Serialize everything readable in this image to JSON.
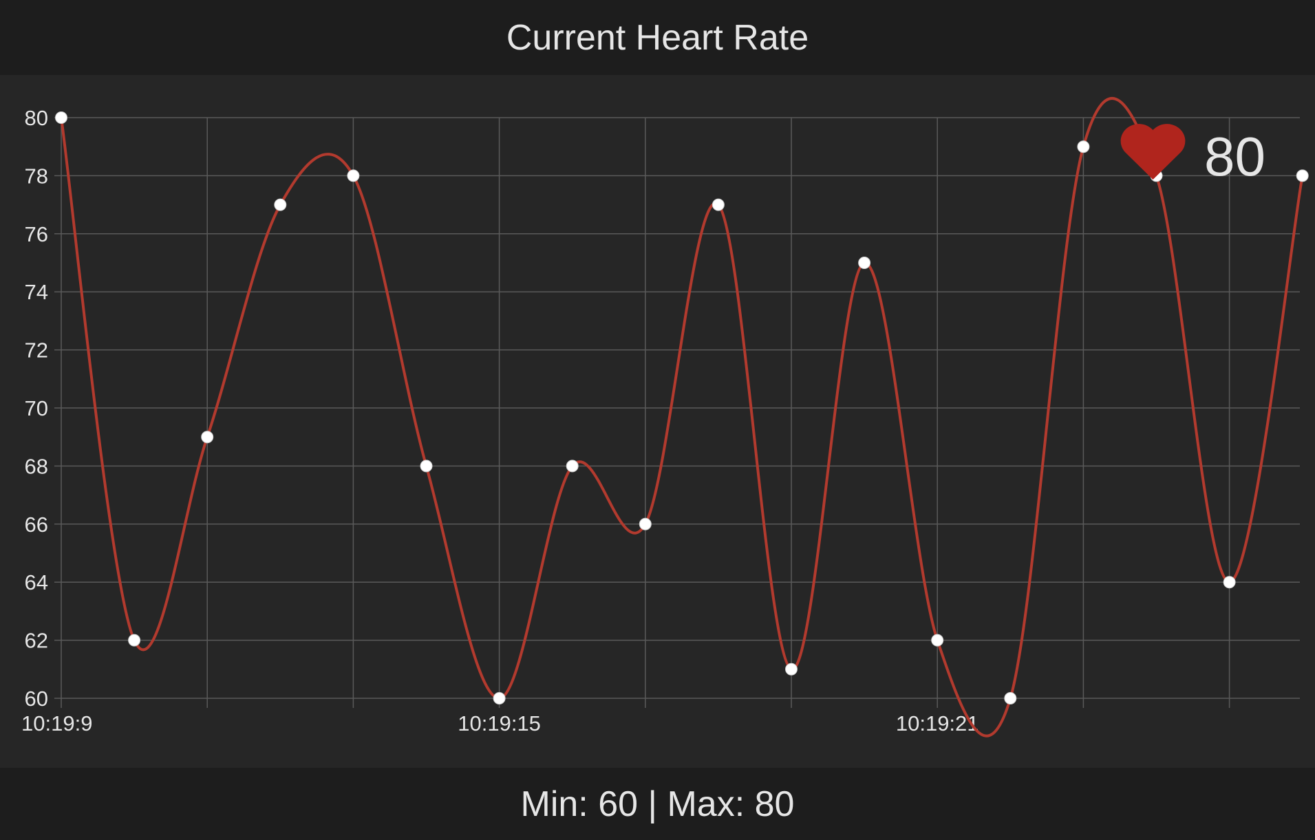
{
  "header": {
    "title": "Current Heart Rate"
  },
  "footer": {
    "min_label": "Min:",
    "min_value": "60",
    "separator": "|",
    "max_label": "Max:",
    "max_value": "80"
  },
  "current": {
    "icon": "heart-icon",
    "value": "80"
  },
  "colors": {
    "line": "#b23a2e",
    "heart": "#b0251d",
    "grid": "#5a5a5a",
    "point_fill": "#ffffff",
    "text": "#e6e6e6"
  },
  "chart_data": {
    "type": "line",
    "title": "Current Heart Rate",
    "xlabel": "",
    "ylabel": "",
    "ylim": [
      60,
      80
    ],
    "yticks": [
      "80",
      "78",
      "76",
      "74",
      "72",
      "70",
      "68",
      "66",
      "64",
      "62",
      "60"
    ],
    "xtick_labels": [
      "10:19:9",
      "10:19:15",
      "10:19:21"
    ],
    "grid": true,
    "curve": "smooth",
    "series": [
      {
        "values": [
          80,
          62,
          69,
          77,
          78,
          68,
          60,
          68,
          66,
          77,
          61,
          75,
          62,
          60,
          79,
          78,
          64,
          78
        ]
      }
    ]
  }
}
